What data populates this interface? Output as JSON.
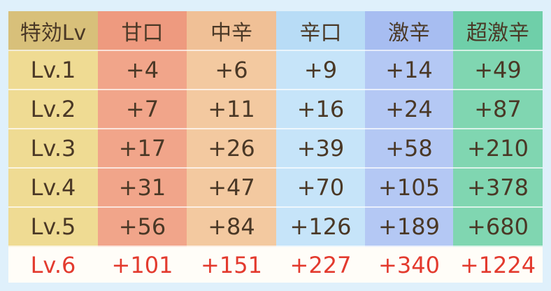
{
  "table": {
    "header": [
      "特効Lv",
      "甘口",
      "中辛",
      "辛口",
      "激辛",
      "超激辛"
    ],
    "rows": [
      [
        "Lv.1",
        "+4",
        "+6",
        "+9",
        "+14",
        "+49"
      ],
      [
        "Lv.2",
        "+7",
        "+11",
        "+16",
        "+24",
        "+87"
      ],
      [
        "Lv.3",
        "+17",
        "+26",
        "+39",
        "+58",
        "+210"
      ],
      [
        "Lv.4",
        "+31",
        "+47",
        "+70",
        "+105",
        "+378"
      ],
      [
        "Lv.5",
        "+56",
        "+84",
        "+126",
        "+189",
        "+680"
      ],
      [
        "Lv.6",
        "+101",
        "+151",
        "+227",
        "+340",
        "+1224"
      ]
    ]
  }
}
